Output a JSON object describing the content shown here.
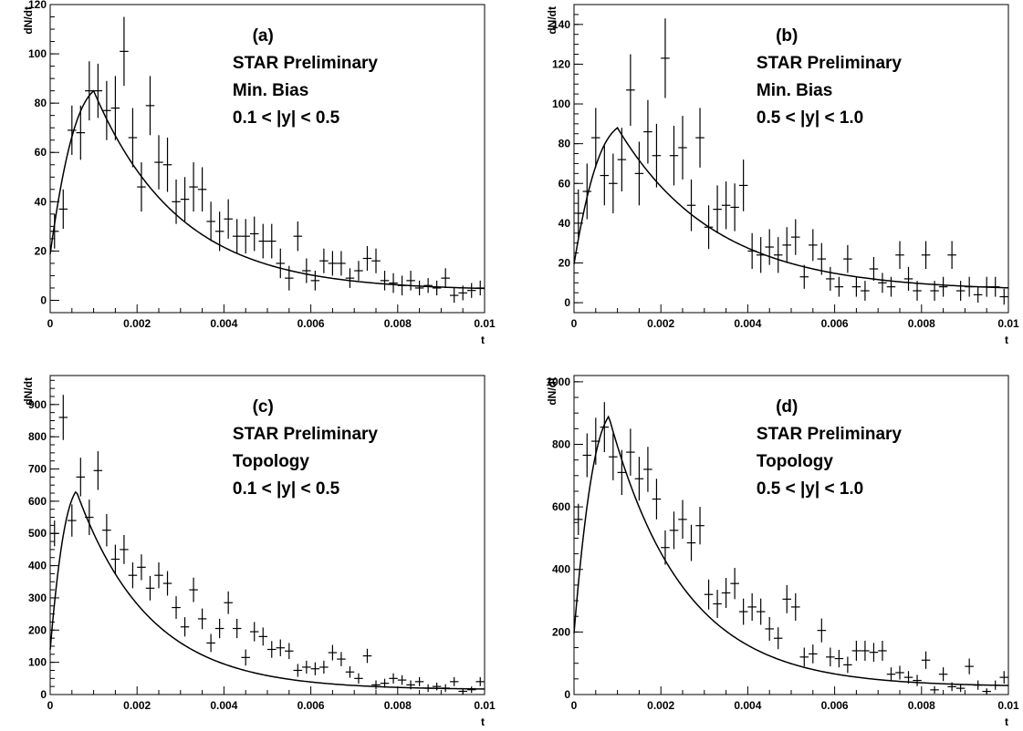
{
  "chart_data": [
    {
      "type": "scatter",
      "panel_label": "(a)",
      "annotations": [
        "STAR Preliminary",
        "Min. Bias",
        "0.1 < |y| < 0.5"
      ],
      "xlabel": "t",
      "ylabel": "dN/dt",
      "xlim": [
        0,
        0.01
      ],
      "ylim": [
        -5,
        120
      ],
      "xticks": [
        "0",
        "0.002",
        "0.004",
        "0.006",
        "0.008",
        "0.01"
      ],
      "yticks": [
        "0",
        "20",
        "40",
        "60",
        "80",
        "100",
        "120"
      ],
      "fit_peak": [
        0.001,
        85
      ],
      "fit_tail_end": 4,
      "points": [
        [
          0.0001,
          28,
          7
        ],
        [
          0.0003,
          37,
          8
        ],
        [
          0.0005,
          69,
          10
        ],
        [
          0.0007,
          68,
          11
        ],
        [
          0.0009,
          85,
          12
        ],
        [
          0.0011,
          85,
          11
        ],
        [
          0.0013,
          77,
          12
        ],
        [
          0.0015,
          78,
          13
        ],
        [
          0.0017,
          101,
          14
        ],
        [
          0.0019,
          66,
          12
        ],
        [
          0.0021,
          46,
          10
        ],
        [
          0.0023,
          79,
          12
        ],
        [
          0.0025,
          56,
          11
        ],
        [
          0.0027,
          55,
          11
        ],
        [
          0.0029,
          40,
          9
        ],
        [
          0.0031,
          41,
          9
        ],
        [
          0.0033,
          46,
          10
        ],
        [
          0.0035,
          45,
          9
        ],
        [
          0.0037,
          32,
          8
        ],
        [
          0.0039,
          28,
          8
        ],
        [
          0.0041,
          33,
          8
        ],
        [
          0.0043,
          26,
          7
        ],
        [
          0.0045,
          26,
          7
        ],
        [
          0.0047,
          27,
          7
        ],
        [
          0.0049,
          24,
          7
        ],
        [
          0.0051,
          24,
          7
        ],
        [
          0.0053,
          15,
          6
        ],
        [
          0.0055,
          9,
          5
        ],
        [
          0.0057,
          26,
          6
        ],
        [
          0.0059,
          12,
          5
        ],
        [
          0.0061,
          8,
          4
        ],
        [
          0.0063,
          16,
          5
        ],
        [
          0.0065,
          15,
          5
        ],
        [
          0.0067,
          15,
          5
        ],
        [
          0.0069,
          9,
          4
        ],
        [
          0.0071,
          12,
          4
        ],
        [
          0.0073,
          17,
          5
        ],
        [
          0.0075,
          16,
          5
        ],
        [
          0.0077,
          8,
          4
        ],
        [
          0.0079,
          7,
          4
        ],
        [
          0.0081,
          6,
          4
        ],
        [
          0.0083,
          8,
          4
        ],
        [
          0.0085,
          5,
          3
        ],
        [
          0.0087,
          6,
          3
        ],
        [
          0.0089,
          5,
          3
        ],
        [
          0.0091,
          9,
          4
        ],
        [
          0.0093,
          2,
          3
        ],
        [
          0.0095,
          3,
          3
        ],
        [
          0.0097,
          4,
          3
        ],
        [
          0.0099,
          5,
          3
        ]
      ]
    },
    {
      "type": "scatter",
      "panel_label": "(b)",
      "annotations": [
        "STAR Preliminary",
        "Min. Bias",
        "0.5 < |y| < 1.0"
      ],
      "xlabel": "t",
      "ylabel": "dN/dt",
      "xlim": [
        0,
        0.01
      ],
      "ylim": [
        -5,
        150
      ],
      "xticks": [
        "0",
        "0.002",
        "0.004",
        "0.006",
        "0.008",
        "0.01"
      ],
      "yticks": [
        "0",
        "20",
        "40",
        "60",
        "80",
        "100",
        "120",
        "140"
      ],
      "fit_peak": [
        0.001,
        88
      ],
      "fit_tail_end": 6,
      "points": [
        [
          0.0001,
          45,
          12
        ],
        [
          0.0003,
          56,
          14
        ],
        [
          0.0005,
          83,
          15
        ],
        [
          0.0007,
          64,
          15
        ],
        [
          0.0009,
          60,
          15
        ],
        [
          0.0011,
          72,
          16
        ],
        [
          0.0013,
          107,
          18
        ],
        [
          0.0015,
          65,
          16
        ],
        [
          0.0017,
          86,
          16
        ],
        [
          0.0019,
          74,
          16
        ],
        [
          0.0021,
          123,
          20
        ],
        [
          0.0023,
          74,
          15
        ],
        [
          0.0025,
          78,
          16
        ],
        [
          0.0027,
          49,
          13
        ],
        [
          0.0029,
          83,
          15
        ],
        [
          0.0031,
          38,
          11
        ],
        [
          0.0033,
          47,
          12
        ],
        [
          0.0035,
          49,
          12
        ],
        [
          0.0037,
          48,
          12
        ],
        [
          0.0039,
          59,
          13
        ],
        [
          0.0041,
          26,
          9
        ],
        [
          0.0043,
          24,
          9
        ],
        [
          0.0045,
          28,
          9
        ],
        [
          0.0047,
          24,
          9
        ],
        [
          0.0049,
          29,
          9
        ],
        [
          0.0051,
          33,
          9
        ],
        [
          0.0053,
          13,
          6
        ],
        [
          0.0055,
          29,
          8
        ],
        [
          0.0057,
          22,
          8
        ],
        [
          0.0059,
          12,
          6
        ],
        [
          0.0061,
          8,
          5
        ],
        [
          0.0063,
          22,
          7
        ],
        [
          0.0065,
          8,
          5
        ],
        [
          0.0067,
          6,
          5
        ],
        [
          0.0069,
          17,
          6
        ],
        [
          0.0071,
          10,
          5
        ],
        [
          0.0073,
          8,
          5
        ],
        [
          0.0075,
          24,
          7
        ],
        [
          0.0077,
          12,
          6
        ],
        [
          0.0079,
          6,
          5
        ],
        [
          0.0081,
          24,
          7
        ],
        [
          0.0083,
          6,
          5
        ],
        [
          0.0085,
          8,
          5
        ],
        [
          0.0087,
          24,
          7
        ],
        [
          0.0089,
          6,
          5
        ],
        [
          0.0091,
          8,
          5
        ],
        [
          0.0093,
          4,
          4
        ],
        [
          0.0095,
          8,
          5
        ],
        [
          0.0097,
          8,
          5
        ],
        [
          0.0099,
          3,
          4
        ]
      ]
    },
    {
      "type": "scatter",
      "panel_label": "(c)",
      "annotations": [
        "STAR Preliminary",
        "Topology",
        "0.1 < |y| < 0.5"
      ],
      "xlabel": "t",
      "ylabel": "dN/dt",
      "xlim": [
        0,
        0.01
      ],
      "ylim": [
        0,
        990
      ],
      "xticks": [
        "0",
        "0.002",
        "0.004",
        "0.006",
        "0.008",
        "0.01"
      ],
      "yticks": [
        "0",
        "100",
        "200",
        "300",
        "400",
        "500",
        "600",
        "700",
        "800",
        "900"
      ],
      "fit_peak": [
        0.0006,
        632
      ],
      "fit_tail_end": 15,
      "points": [
        [
          0.0001,
          500,
          40
        ],
        [
          0.0003,
          860,
          70
        ],
        [
          0.0005,
          540,
          50
        ],
        [
          0.0007,
          675,
          60
        ],
        [
          0.0009,
          550,
          55
        ],
        [
          0.0011,
          695,
          60
        ],
        [
          0.0013,
          510,
          50
        ],
        [
          0.0015,
          420,
          45
        ],
        [
          0.0017,
          450,
          45
        ],
        [
          0.0019,
          370,
          40
        ],
        [
          0.0021,
          395,
          40
        ],
        [
          0.0023,
          330,
          38
        ],
        [
          0.0025,
          370,
          40
        ],
        [
          0.0027,
          345,
          38
        ],
        [
          0.0029,
          270,
          35
        ],
        [
          0.0031,
          210,
          30
        ],
        [
          0.0033,
          325,
          38
        ],
        [
          0.0035,
          235,
          32
        ],
        [
          0.0037,
          160,
          28
        ],
        [
          0.0039,
          205,
          30
        ],
        [
          0.0041,
          285,
          35
        ],
        [
          0.0043,
          205,
          30
        ],
        [
          0.0045,
          115,
          25
        ],
        [
          0.0047,
          195,
          30
        ],
        [
          0.0049,
          180,
          28
        ],
        [
          0.0051,
          140,
          26
        ],
        [
          0.0053,
          145,
          26
        ],
        [
          0.0055,
          135,
          25
        ],
        [
          0.0057,
          75,
          20
        ],
        [
          0.0059,
          85,
          20
        ],
        [
          0.0061,
          80,
          20
        ],
        [
          0.0063,
          85,
          20
        ],
        [
          0.0065,
          130,
          24
        ],
        [
          0.0067,
          110,
          22
        ],
        [
          0.0069,
          70,
          18
        ],
        [
          0.0071,
          50,
          16
        ],
        [
          0.0073,
          120,
          22
        ],
        [
          0.0075,
          30,
          14
        ],
        [
          0.0077,
          35,
          14
        ],
        [
          0.0079,
          50,
          16
        ],
        [
          0.0081,
          45,
          15
        ],
        [
          0.0083,
          30,
          14
        ],
        [
          0.0085,
          40,
          14
        ],
        [
          0.0087,
          20,
          12
        ],
        [
          0.0089,
          25,
          12
        ],
        [
          0.0091,
          20,
          12
        ],
        [
          0.0093,
          40,
          14
        ],
        [
          0.0095,
          10,
          10
        ],
        [
          0.0097,
          15,
          10
        ],
        [
          0.0099,
          40,
          14
        ]
      ]
    },
    {
      "type": "scatter",
      "panel_label": "(d)",
      "annotations": [
        "STAR Preliminary",
        "Topology",
        "0.5 < |y| < 1.0"
      ],
      "xlabel": "t",
      "ylabel": "dN/dt",
      "xlim": [
        0,
        0.01
      ],
      "ylim": [
        0,
        1020
      ],
      "xticks": [
        "0",
        "0.002",
        "0.004",
        "0.006",
        "0.008",
        "0.01"
      ],
      "yticks": [
        "0",
        "200",
        "400",
        "600",
        "800",
        "1000"
      ],
      "fit_peak": [
        0.0008,
        890
      ],
      "fit_tail_end": 25,
      "points": [
        [
          0.0001,
          560,
          50
        ],
        [
          0.0003,
          765,
          70
        ],
        [
          0.0005,
          810,
          75
        ],
        [
          0.0007,
          855,
          80
        ],
        [
          0.0009,
          760,
          75
        ],
        [
          0.0011,
          710,
          72
        ],
        [
          0.0013,
          775,
          75
        ],
        [
          0.0015,
          690,
          70
        ],
        [
          0.0017,
          720,
          72
        ],
        [
          0.0019,
          625,
          65
        ],
        [
          0.0021,
          470,
          55
        ],
        [
          0.0023,
          525,
          60
        ],
        [
          0.0025,
          560,
          62
        ],
        [
          0.0027,
          485,
          58
        ],
        [
          0.0029,
          540,
          60
        ],
        [
          0.0031,
          320,
          48
        ],
        [
          0.0033,
          290,
          45
        ],
        [
          0.0035,
          325,
          48
        ],
        [
          0.0037,
          355,
          50
        ],
        [
          0.0039,
          265,
          42
        ],
        [
          0.0041,
          280,
          44
        ],
        [
          0.0043,
          265,
          42
        ],
        [
          0.0045,
          210,
          38
        ],
        [
          0.0047,
          180,
          35
        ],
        [
          0.0049,
          305,
          45
        ],
        [
          0.0051,
          280,
          44
        ],
        [
          0.0053,
          120,
          30
        ],
        [
          0.0055,
          130,
          30
        ],
        [
          0.0057,
          205,
          38
        ],
        [
          0.0059,
          120,
          30
        ],
        [
          0.0061,
          115,
          28
        ],
        [
          0.0063,
          95,
          26
        ],
        [
          0.0065,
          140,
          32
        ],
        [
          0.0067,
          140,
          32
        ],
        [
          0.0069,
          135,
          30
        ],
        [
          0.0071,
          140,
          32
        ],
        [
          0.0073,
          65,
          22
        ],
        [
          0.0075,
          70,
          22
        ],
        [
          0.0077,
          55,
          20
        ],
        [
          0.0079,
          45,
          18
        ],
        [
          0.0081,
          110,
          28
        ],
        [
          0.0083,
          15,
          12
        ],
        [
          0.0085,
          65,
          22
        ],
        [
          0.0087,
          25,
          14
        ],
        [
          0.0089,
          20,
          12
        ],
        [
          0.0091,
          90,
          25
        ],
        [
          0.0093,
          30,
          15
        ],
        [
          0.0095,
          10,
          10
        ],
        [
          0.0097,
          30,
          15
        ],
        [
          0.0099,
          55,
          20
        ]
      ]
    }
  ]
}
